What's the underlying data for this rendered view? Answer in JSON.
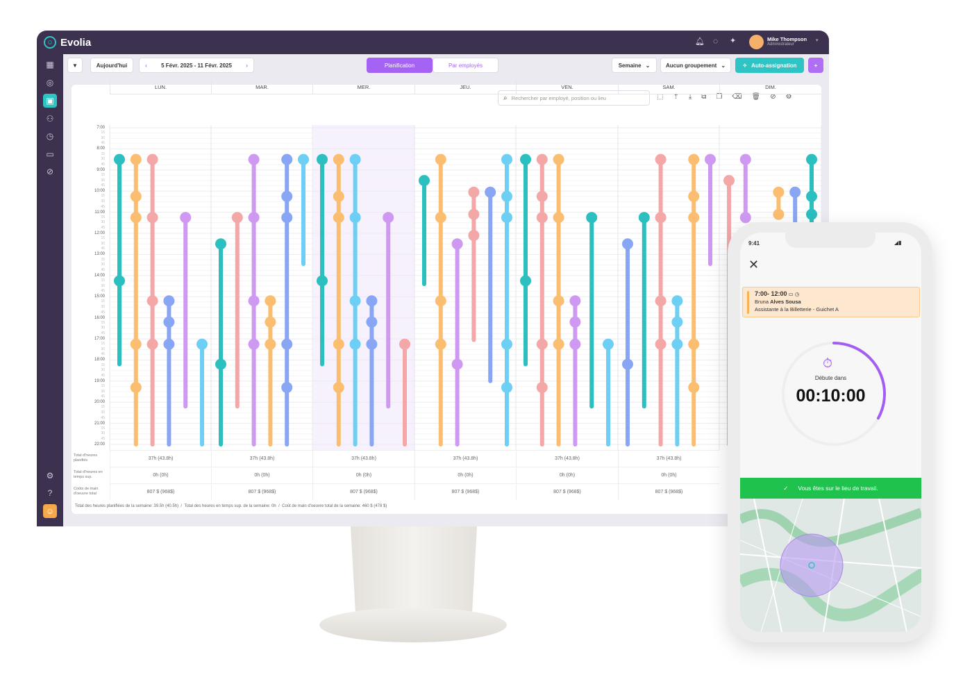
{
  "app": {
    "name": "Evolia"
  },
  "user": {
    "name": "Mike Thompson",
    "role": "Administrateur"
  },
  "toolbar": {
    "today": "Aujourd'hui",
    "date_range": "5 Févr. 2025 - 11 Févr. 2025",
    "tabs": [
      "Planification",
      "Par employés"
    ],
    "view": "Semaine",
    "grouping": "Aucun groupement",
    "auto_assign": "Auto-assignation",
    "add": "+"
  },
  "search": {
    "placeholder": "Rechercher par employé, position ou lieu"
  },
  "days": [
    "LUN.",
    "MAR.",
    "MER.",
    "JEU.",
    "VEN.",
    "SAM.",
    "DIM."
  ],
  "hours": [
    "7:00",
    "8:00",
    "9:00",
    "10:00",
    "11:00",
    "12:00",
    "13:00",
    "14:00",
    "15:00",
    "16:00",
    "17:00",
    "18:00",
    "19:00",
    "20:00",
    "21:00",
    "22:00"
  ],
  "quarter_labels": [
    "15",
    "30",
    "45"
  ],
  "colors": {
    "teal": "#2bbfbf",
    "orange": "#fbbd70",
    "pink": "#f3a7a7",
    "blue": "#88a6f3",
    "purple": "#cf99f2",
    "cyan": "#6dcff4",
    "accent": "#a463f5"
  },
  "shifts": [
    {
      "day": 0,
      "slot": 0,
      "c": "teal",
      "s": 8.5,
      "e": 18.2,
      "m": [
        8.5,
        14.25
      ]
    },
    {
      "day": 0,
      "slot": 1,
      "c": "orange",
      "s": 8.5,
      "e": 22,
      "m": [
        8.5,
        10.25,
        11.25,
        17.25,
        19.3
      ]
    },
    {
      "day": 0,
      "slot": 2,
      "c": "pink",
      "s": 8.5,
      "e": 22,
      "m": [
        8.5,
        11.25,
        15.2,
        17.25
      ]
    },
    {
      "day": 0,
      "slot": 3,
      "c": "blue",
      "s": 15.2,
      "e": 22,
      "m": [
        15.2,
        16.2,
        17.25
      ]
    },
    {
      "day": 0,
      "slot": 4,
      "c": "purple",
      "s": 11.25,
      "e": 20.2,
      "m": [
        11.25
      ]
    },
    {
      "day": 0,
      "slot": 5,
      "c": "cyan",
      "s": 17.25,
      "e": 22,
      "m": [
        17.25
      ]
    },
    {
      "day": 1,
      "slot": 0,
      "c": "teal",
      "s": 12.5,
      "e": 22,
      "m": [
        12.5,
        18.2
      ]
    },
    {
      "day": 1,
      "slot": 1,
      "c": "pink",
      "s": 11.25,
      "e": 20.2,
      "m": [
        11.25
      ]
    },
    {
      "day": 1,
      "slot": 2,
      "c": "purple",
      "s": 8.5,
      "e": 22,
      "m": [
        8.5,
        11.25,
        15.2,
        17.25
      ]
    },
    {
      "day": 1,
      "slot": 3,
      "c": "orange",
      "s": 15.2,
      "e": 22,
      "m": [
        15.2,
        16.2,
        17.25
      ]
    },
    {
      "day": 1,
      "slot": 4,
      "c": "blue",
      "s": 8.5,
      "e": 22,
      "m": [
        8.5,
        10.25,
        11.25,
        17.25,
        19.3
      ]
    },
    {
      "day": 1,
      "slot": 5,
      "c": "cyan",
      "s": 8.5,
      "e": 13.45,
      "m": [
        8.5
      ]
    },
    {
      "day": 2,
      "slot": 0,
      "c": "teal",
      "s": 8.5,
      "e": 18.2,
      "m": [
        8.5,
        14.25
      ]
    },
    {
      "day": 2,
      "slot": 1,
      "c": "orange",
      "s": 8.5,
      "e": 22,
      "m": [
        8.5,
        10.25,
        11.25,
        17.25,
        19.3
      ]
    },
    {
      "day": 2,
      "slot": 2,
      "c": "cyan",
      "s": 8.5,
      "e": 22,
      "m": [
        8.5,
        11.25,
        15.2,
        17.25
      ]
    },
    {
      "day": 2,
      "slot": 3,
      "c": "blue",
      "s": 15.2,
      "e": 22,
      "m": [
        15.2,
        16.2,
        17.25
      ]
    },
    {
      "day": 2,
      "slot": 4,
      "c": "purple",
      "s": 11.25,
      "e": 20.2,
      "m": [
        11.25
      ]
    },
    {
      "day": 2,
      "slot": 5,
      "c": "pink",
      "s": 17.25,
      "e": 22,
      "m": [
        17.25
      ]
    },
    {
      "day": 3,
      "slot": 0,
      "c": "teal",
      "s": 9.5,
      "e": 14.4,
      "m": [
        9.5
      ]
    },
    {
      "day": 3,
      "slot": 1,
      "c": "orange",
      "s": 8.5,
      "e": 22,
      "m": [
        8.5,
        11.25,
        15.2,
        17.25
      ]
    },
    {
      "day": 3,
      "slot": 2,
      "c": "purple",
      "s": 12.5,
      "e": 22,
      "m": [
        12.5,
        18.2
      ]
    },
    {
      "day": 3,
      "slot": 3,
      "c": "pink",
      "s": 10.05,
      "e": 17.05,
      "m": [
        10.05,
        11.1,
        12.1
      ]
    },
    {
      "day": 3,
      "slot": 4,
      "c": "blue",
      "s": 10.05,
      "e": 19,
      "m": [
        10.05
      ]
    },
    {
      "day": 3,
      "slot": 5,
      "c": "cyan",
      "s": 8.5,
      "e": 22,
      "m": [
        8.5,
        10.25,
        11.25,
        17.25,
        19.3
      ]
    },
    {
      "day": 4,
      "slot": 0,
      "c": "teal",
      "s": 8.5,
      "e": 18.2,
      "m": [
        8.5,
        14.25
      ]
    },
    {
      "day": 4,
      "slot": 1,
      "c": "pink",
      "s": 8.5,
      "e": 22,
      "m": [
        8.5,
        10.25,
        11.25,
        17.25,
        19.3
      ]
    },
    {
      "day": 4,
      "slot": 2,
      "c": "orange",
      "s": 8.5,
      "e": 22,
      "m": [
        8.5,
        11.25,
        15.2,
        17.25
      ]
    },
    {
      "day": 4,
      "slot": 3,
      "c": "purple",
      "s": 15.2,
      "e": 22,
      "m": [
        15.2,
        16.2,
        17.25
      ]
    },
    {
      "day": 4,
      "slot": 4,
      "c": "teal",
      "s": 11.25,
      "e": 20.2,
      "m": [
        11.25
      ]
    },
    {
      "day": 4,
      "slot": 5,
      "c": "cyan",
      "s": 17.25,
      "e": 22,
      "m": [
        17.25
      ]
    },
    {
      "day": 5,
      "slot": 0,
      "c": "blue",
      "s": 12.5,
      "e": 22,
      "m": [
        12.5,
        18.2
      ]
    },
    {
      "day": 5,
      "slot": 1,
      "c": "teal",
      "s": 11.25,
      "e": 20.2,
      "m": [
        11.25
      ]
    },
    {
      "day": 5,
      "slot": 2,
      "c": "pink",
      "s": 8.5,
      "e": 22,
      "m": [
        8.5,
        11.25,
        15.2,
        17.25
      ]
    },
    {
      "day": 5,
      "slot": 3,
      "c": "cyan",
      "s": 15.2,
      "e": 22,
      "m": [
        15.2,
        16.2,
        17.25
      ]
    },
    {
      "day": 5,
      "slot": 4,
      "c": "orange",
      "s": 8.5,
      "e": 22,
      "m": [
        8.5,
        10.25,
        11.25,
        17.25,
        19.3
      ]
    },
    {
      "day": 5,
      "slot": 5,
      "c": "purple",
      "s": 8.5,
      "e": 13.45,
      "m": [
        8.5
      ]
    },
    {
      "day": 6,
      "slot": 0,
      "c": "pink",
      "s": 9.5,
      "e": 22,
      "m": [
        9.5
      ]
    },
    {
      "day": 6,
      "slot": 1,
      "c": "purple",
      "s": 8.5,
      "e": 11.25,
      "m": [
        8.5,
        11.25
      ]
    },
    {
      "day": 6,
      "slot": 3,
      "c": "orange",
      "s": 10.05,
      "e": 11.1,
      "m": [
        10.05,
        11.1
      ]
    },
    {
      "day": 6,
      "slot": 4,
      "c": "blue",
      "s": 10.05,
      "e": 22,
      "m": [
        10.05
      ]
    },
    {
      "day": 6,
      "slot": 5,
      "c": "teal",
      "s": 8.5,
      "e": 22,
      "m": [
        8.5,
        10.25,
        11.1
      ]
    }
  ],
  "footer": {
    "labels": [
      "Total d'heures planifiés",
      "Total d'heures en temps sup.",
      "Coûts de main d'oeuvre total"
    ],
    "planned": [
      "37h (43.8h)",
      "37h (43.8h)",
      "37h (43.8h)",
      "37h (43.8h)",
      "37h (43.8h)",
      "37h (43.8h)"
    ],
    "overtime": [
      "0h (0h)",
      "0h (0h)",
      "0h (0h)",
      "0h (0h)",
      "0h (0h)",
      "0h (0h)"
    ],
    "cost": [
      "807 $ (968$)",
      "807 $ (968$)",
      "807 $ (968$)",
      "807 $ (968$)",
      "807 $ (968$)",
      "807 $ (968$)"
    ],
    "summary": "Total des heures planifiées de la semaine: 39.5h (40.5h)  /  Total des heures en temps sup. de la semaine: 0h  /  Coût de main d'oeuvre total de la semaine: 460 $ (478 $)"
  },
  "phone": {
    "time": "9:41",
    "shift_time": "7:00- 12:00",
    "employee_first": "Bruna",
    "employee_last": "Alves Sousa",
    "position": "Assistante à la Billetterie - Guichet  A",
    "starts_in": "Débute dans",
    "countdown": "00:10:00",
    "countdown_progress": 0.33,
    "location_ok": "Vous êtes sur le lieu de travail."
  }
}
